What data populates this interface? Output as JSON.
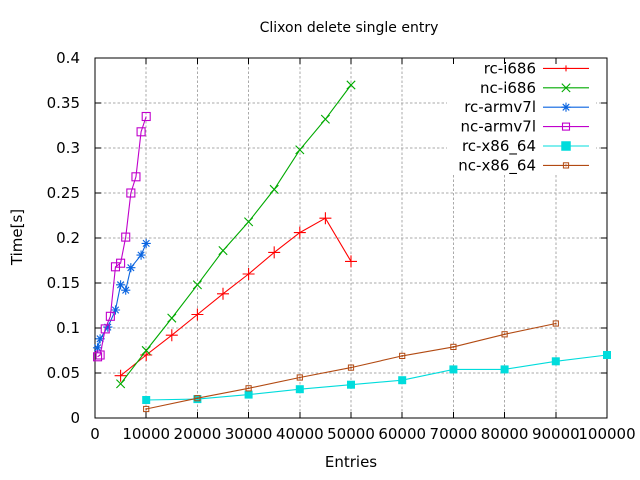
{
  "chart_data": {
    "type": "line",
    "title": "Clixon delete single entry",
    "xlabel": "Entries",
    "ylabel": "Time[s]",
    "xlim": [
      0,
      100000
    ],
    "ylim": [
      0,
      0.4
    ],
    "grid": true,
    "legend_position": "top-right-inside",
    "grid_color": "#aaaaaa",
    "xticks": [
      {
        "v": 0,
        "label": "0"
      },
      {
        "v": 10000,
        "label": "10000"
      },
      {
        "v": 20000,
        "label": "20000"
      },
      {
        "v": 30000,
        "label": "30000"
      },
      {
        "v": 40000,
        "label": "40000"
      },
      {
        "v": 50000,
        "label": "50000"
      },
      {
        "v": 60000,
        "label": "60000"
      },
      {
        "v": 70000,
        "label": "70000"
      },
      {
        "v": 80000,
        "label": "80000"
      },
      {
        "v": 90000,
        "label": "90000"
      },
      {
        "v": 100000,
        "label": "100000"
      }
    ],
    "yticks": [
      {
        "v": 0,
        "label": "0"
      },
      {
        "v": 0.05,
        "label": "0.05"
      },
      {
        "v": 0.1,
        "label": "0.1"
      },
      {
        "v": 0.15,
        "label": "0.15"
      },
      {
        "v": 0.2,
        "label": "0.2"
      },
      {
        "v": 0.25,
        "label": "0.25"
      },
      {
        "v": 0.3,
        "label": "0.3"
      },
      {
        "v": 0.35,
        "label": "0.35"
      },
      {
        "v": 0.4,
        "label": "0.4"
      }
    ],
    "series": [
      {
        "name": "rc-i686",
        "color": "#ff0000",
        "marker": "plus",
        "x": [
          5000,
          10000,
          15000,
          20000,
          25000,
          30000,
          35000,
          40000,
          45000,
          50000
        ],
        "y": [
          0.047,
          0.07,
          0.092,
          0.115,
          0.138,
          0.16,
          0.184,
          0.206,
          0.222,
          0.174
        ]
      },
      {
        "name": "nc-i686",
        "color": "#00aa00",
        "marker": "cross",
        "x": [
          5000,
          10000,
          15000,
          20000,
          25000,
          30000,
          35000,
          40000,
          45000,
          50000
        ],
        "y": [
          0.038,
          0.075,
          0.111,
          0.148,
          0.186,
          0.218,
          0.254,
          0.298,
          0.332,
          0.37
        ]
      },
      {
        "name": "rc-armv7l",
        "color": "#0a64e0",
        "marker": "star",
        "x": [
          500,
          1000,
          2500,
          4000,
          5000,
          6000,
          7000,
          9000,
          10000
        ],
        "y": [
          0.078,
          0.088,
          0.101,
          0.12,
          0.148,
          0.142,
          0.167,
          0.181,
          0.194
        ]
      },
      {
        "name": "nc-armv7l",
        "color": "#c000cc",
        "marker": "square-open",
        "x": [
          500,
          1000,
          2000,
          3000,
          4000,
          5000,
          6000,
          7000,
          8000,
          9000,
          10000
        ],
        "y": [
          0.068,
          0.07,
          0.099,
          0.113,
          0.168,
          0.172,
          0.201,
          0.25,
          0.268,
          0.318,
          0.335
        ]
      },
      {
        "name": "rc-x86_64",
        "color": "#00dcdc",
        "marker": "square-filled",
        "x": [
          10000,
          20000,
          30000,
          40000,
          50000,
          60000,
          70000,
          80000,
          90000,
          100000
        ],
        "y": [
          0.02,
          0.021,
          0.026,
          0.032,
          0.037,
          0.042,
          0.054,
          0.054,
          0.063,
          0.07
        ]
      },
      {
        "name": "nc-x86_64",
        "color": "#b24a12",
        "marker": "square-dot",
        "x": [
          10000,
          20000,
          30000,
          40000,
          50000,
          60000,
          70000,
          80000,
          90000
        ],
        "y": [
          0.01,
          0.022,
          0.033,
          0.045,
          0.056,
          0.069,
          0.079,
          0.093,
          0.105
        ]
      }
    ]
  }
}
